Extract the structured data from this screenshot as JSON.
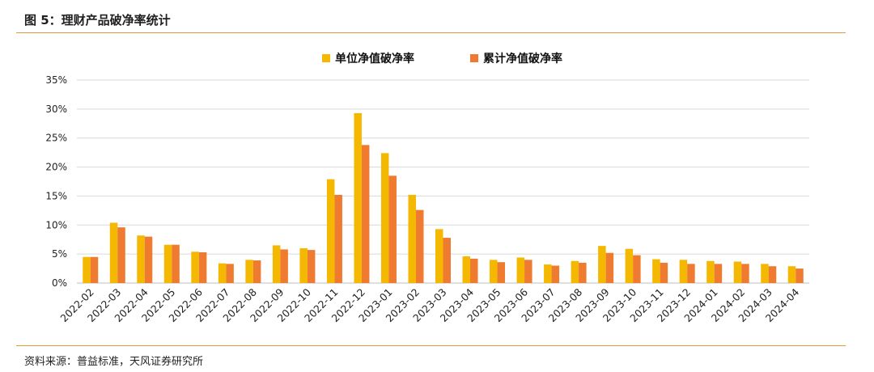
{
  "header": {
    "title": "图 5：理财产品破净率统计"
  },
  "footer": {
    "source": "资料来源：普益标准，天风证券研究所"
  },
  "colors": {
    "series1": "#f5b800",
    "series2": "#ee7b30",
    "rule": "#e39a3b",
    "grid": "#d9d9d9"
  },
  "chart_data": {
    "type": "bar",
    "title": "",
    "xlabel": "",
    "ylabel": "",
    "ylim": [
      0,
      35
    ],
    "yticks": [
      "0%",
      "5%",
      "10%",
      "15%",
      "20%",
      "25%",
      "30%",
      "35%"
    ],
    "grid": true,
    "legend_position": "top-center",
    "categories": [
      "2022-02",
      "2022-03",
      "2022-04",
      "2022-05",
      "2022-06",
      "2022-07",
      "2022-08",
      "2022-09",
      "2022-10",
      "2022-11",
      "2022-12",
      "2023-01",
      "2023-02",
      "2023-03",
      "2023-04",
      "2023-05",
      "2023-06",
      "2023-07",
      "2023-08",
      "2023-09",
      "2023-10",
      "2023-11",
      "2023-12",
      "2024-01",
      "2024-02",
      "2024-03",
      "2024-04"
    ],
    "series": [
      {
        "name": "单位净值破净率",
        "values": [
          4.5,
          10.4,
          8.2,
          6.6,
          5.4,
          3.4,
          4.0,
          6.5,
          6.0,
          17.9,
          29.3,
          22.4,
          15.2,
          9.3,
          4.6,
          4.0,
          4.4,
          3.2,
          3.8,
          6.4,
          5.9,
          4.1,
          4.0,
          3.8,
          3.7,
          3.3,
          2.9
        ]
      },
      {
        "name": "累计净值破净率",
        "values": [
          4.5,
          9.6,
          8.0,
          6.6,
          5.3,
          3.3,
          3.9,
          5.8,
          5.7,
          15.2,
          23.8,
          18.5,
          12.6,
          7.8,
          4.2,
          3.6,
          4.0,
          3.0,
          3.5,
          5.2,
          4.8,
          3.5,
          3.3,
          3.3,
          3.3,
          2.9,
          2.5
        ]
      }
    ]
  }
}
